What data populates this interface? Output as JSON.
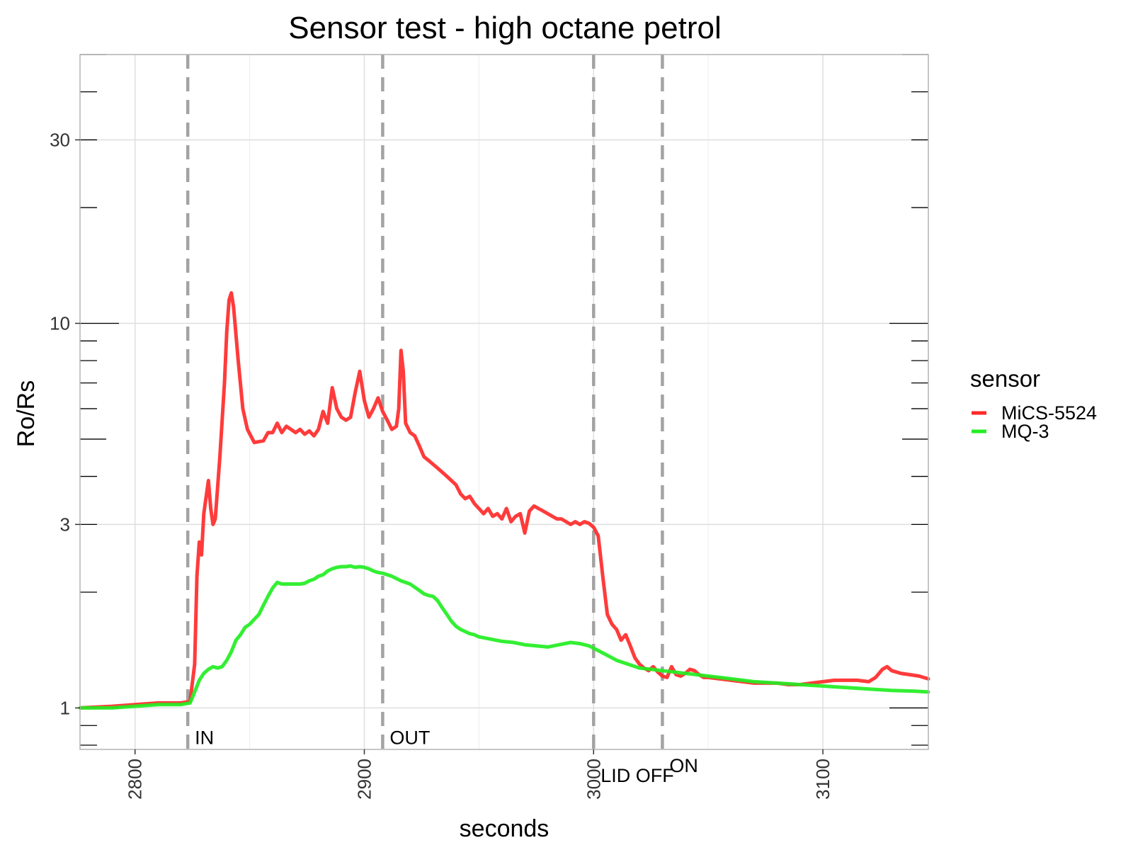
{
  "chart_data": {
    "type": "line",
    "title": "Sensor test - high octane petrol",
    "xlabel": "seconds",
    "ylabel": "Ro/Rs",
    "xlim": [
      2776,
      3146
    ],
    "ylim": [
      0.78,
      50
    ],
    "y_scale": "log",
    "x_ticks": [
      2800,
      2900,
      3000,
      3100
    ],
    "x_tick_labels": [
      "2800",
      "2900",
      "3000",
      "3100"
    ],
    "y_ticks": [
      1,
      3,
      10,
      30
    ],
    "y_tick_labels": [
      "1",
      "3",
      "10",
      "30"
    ],
    "grid": true,
    "legend": {
      "title": "sensor",
      "position": "right"
    },
    "events": [
      {
        "x": 2823,
        "label": "IN",
        "label_y": 0.84
      },
      {
        "x": 2908,
        "label": "OUT",
        "label_y": 0.84
      },
      {
        "x": 3000,
        "label": "LID OFF",
        "label_y": 0.67
      },
      {
        "x": 3030,
        "label": "ON",
        "label_y": 0.71
      }
    ],
    "series": [
      {
        "name": "MiCS-5524",
        "color": "#ff2a2a",
        "points": [
          [
            2776,
            1.0
          ],
          [
            2790,
            1.01
          ],
          [
            2800,
            1.02
          ],
          [
            2810,
            1.03
          ],
          [
            2820,
            1.03
          ],
          [
            2824,
            1.04
          ],
          [
            2826,
            1.3
          ],
          [
            2827,
            2.2
          ],
          [
            2828,
            2.7
          ],
          [
            2829,
            2.5
          ],
          [
            2830,
            3.2
          ],
          [
            2832,
            3.9
          ],
          [
            2833,
            3.3
          ],
          [
            2834,
            3.0
          ],
          [
            2835,
            3.1
          ],
          [
            2837,
            4.5
          ],
          [
            2839,
            7.0
          ],
          [
            2840,
            9.5
          ],
          [
            2841,
            11.5
          ],
          [
            2842,
            12.0
          ],
          [
            2843,
            11.0
          ],
          [
            2845,
            8.0
          ],
          [
            2847,
            6.0
          ],
          [
            2849,
            5.3
          ],
          [
            2852,
            4.9
          ],
          [
            2856,
            4.95
          ],
          [
            2858,
            5.2
          ],
          [
            2860,
            5.2
          ],
          [
            2862,
            5.5
          ],
          [
            2864,
            5.2
          ],
          [
            2866,
            5.4
          ],
          [
            2868,
            5.3
          ],
          [
            2870,
            5.2
          ],
          [
            2872,
            5.3
          ],
          [
            2874,
            5.15
          ],
          [
            2876,
            5.25
          ],
          [
            2878,
            5.1
          ],
          [
            2880,
            5.3
          ],
          [
            2882,
            5.9
          ],
          [
            2884,
            5.5
          ],
          [
            2886,
            6.8
          ],
          [
            2888,
            6.0
          ],
          [
            2890,
            5.7
          ],
          [
            2892,
            5.6
          ],
          [
            2894,
            5.7
          ],
          [
            2896,
            6.6
          ],
          [
            2898,
            7.5
          ],
          [
            2900,
            6.3
          ],
          [
            2902,
            5.7
          ],
          [
            2904,
            6.0
          ],
          [
            2906,
            6.4
          ],
          [
            2908,
            5.9
          ],
          [
            2910,
            5.6
          ],
          [
            2912,
            5.3
          ],
          [
            2914,
            5.4
          ],
          [
            2915,
            6.0
          ],
          [
            2916,
            8.5
          ],
          [
            2917,
            7.5
          ],
          [
            2918,
            5.5
          ],
          [
            2920,
            5.2
          ],
          [
            2922,
            5.1
          ],
          [
            2924,
            4.8
          ],
          [
            2926,
            4.5
          ],
          [
            2928,
            4.4
          ],
          [
            2930,
            4.3
          ],
          [
            2932,
            4.2
          ],
          [
            2934,
            4.1
          ],
          [
            2936,
            4.0
          ],
          [
            2938,
            3.9
          ],
          [
            2940,
            3.8
          ],
          [
            2942,
            3.6
          ],
          [
            2944,
            3.5
          ],
          [
            2946,
            3.55
          ],
          [
            2948,
            3.4
          ],
          [
            2950,
            3.3
          ],
          [
            2952,
            3.2
          ],
          [
            2954,
            3.3
          ],
          [
            2956,
            3.15
          ],
          [
            2958,
            3.2
          ],
          [
            2960,
            3.1
          ],
          [
            2962,
            3.3
          ],
          [
            2964,
            3.05
          ],
          [
            2966,
            3.15
          ],
          [
            2968,
            3.2
          ],
          [
            2970,
            2.85
          ],
          [
            2972,
            3.25
          ],
          [
            2974,
            3.35
          ],
          [
            2976,
            3.3
          ],
          [
            2978,
            3.25
          ],
          [
            2980,
            3.2
          ],
          [
            2982,
            3.15
          ],
          [
            2984,
            3.1
          ],
          [
            2986,
            3.1
          ],
          [
            2988,
            3.05
          ],
          [
            2990,
            3.0
          ],
          [
            2992,
            3.05
          ],
          [
            2994,
            3.0
          ],
          [
            2996,
            3.05
          ],
          [
            2998,
            3.02
          ],
          [
            3000,
            2.95
          ],
          [
            3002,
            2.8
          ],
          [
            3004,
            2.2
          ],
          [
            3006,
            1.75
          ],
          [
            3008,
            1.65
          ],
          [
            3010,
            1.6
          ],
          [
            3012,
            1.5
          ],
          [
            3014,
            1.55
          ],
          [
            3016,
            1.45
          ],
          [
            3018,
            1.35
          ],
          [
            3020,
            1.3
          ],
          [
            3022,
            1.27
          ],
          [
            3024,
            1.25
          ],
          [
            3026,
            1.28
          ],
          [
            3028,
            1.24
          ],
          [
            3030,
            1.21
          ],
          [
            3032,
            1.2
          ],
          [
            3034,
            1.28
          ],
          [
            3036,
            1.22
          ],
          [
            3038,
            1.21
          ],
          [
            3040,
            1.23
          ],
          [
            3042,
            1.26
          ],
          [
            3044,
            1.25
          ],
          [
            3046,
            1.22
          ],
          [
            3048,
            1.2
          ],
          [
            3050,
            1.2
          ],
          [
            3055,
            1.19
          ],
          [
            3060,
            1.18
          ],
          [
            3065,
            1.17
          ],
          [
            3070,
            1.16
          ],
          [
            3075,
            1.16
          ],
          [
            3080,
            1.16
          ],
          [
            3085,
            1.15
          ],
          [
            3090,
            1.15
          ],
          [
            3095,
            1.16
          ],
          [
            3100,
            1.17
          ],
          [
            3105,
            1.18
          ],
          [
            3110,
            1.18
          ],
          [
            3115,
            1.18
          ],
          [
            3120,
            1.17
          ],
          [
            3123,
            1.2
          ],
          [
            3126,
            1.26
          ],
          [
            3128,
            1.28
          ],
          [
            3130,
            1.25
          ],
          [
            3134,
            1.23
          ],
          [
            3138,
            1.22
          ],
          [
            3142,
            1.21
          ],
          [
            3146,
            1.19
          ]
        ]
      },
      {
        "name": "MQ-3",
        "color": "#22ee22",
        "points": [
          [
            2776,
            1.0
          ],
          [
            2790,
            1.0
          ],
          [
            2800,
            1.01
          ],
          [
            2810,
            1.02
          ],
          [
            2820,
            1.02
          ],
          [
            2824,
            1.03
          ],
          [
            2826,
            1.1
          ],
          [
            2828,
            1.18
          ],
          [
            2830,
            1.23
          ],
          [
            2832,
            1.26
          ],
          [
            2834,
            1.28
          ],
          [
            2836,
            1.27
          ],
          [
            2838,
            1.28
          ],
          [
            2840,
            1.33
          ],
          [
            2842,
            1.4
          ],
          [
            2844,
            1.5
          ],
          [
            2846,
            1.55
          ],
          [
            2848,
            1.62
          ],
          [
            2850,
            1.65
          ],
          [
            2852,
            1.7
          ],
          [
            2854,
            1.75
          ],
          [
            2856,
            1.85
          ],
          [
            2858,
            1.95
          ],
          [
            2860,
            2.05
          ],
          [
            2862,
            2.12
          ],
          [
            2864,
            2.1
          ],
          [
            2866,
            2.1
          ],
          [
            2868,
            2.1
          ],
          [
            2870,
            2.1
          ],
          [
            2872,
            2.1
          ],
          [
            2874,
            2.11
          ],
          [
            2876,
            2.14
          ],
          [
            2878,
            2.16
          ],
          [
            2880,
            2.2
          ],
          [
            2882,
            2.22
          ],
          [
            2884,
            2.27
          ],
          [
            2886,
            2.3
          ],
          [
            2888,
            2.32
          ],
          [
            2890,
            2.33
          ],
          [
            2892,
            2.33
          ],
          [
            2894,
            2.34
          ],
          [
            2896,
            2.32
          ],
          [
            2898,
            2.33
          ],
          [
            2900,
            2.32
          ],
          [
            2902,
            2.3
          ],
          [
            2904,
            2.27
          ],
          [
            2906,
            2.25
          ],
          [
            2908,
            2.24
          ],
          [
            2910,
            2.22
          ],
          [
            2912,
            2.2
          ],
          [
            2914,
            2.17
          ],
          [
            2916,
            2.14
          ],
          [
            2918,
            2.12
          ],
          [
            2920,
            2.1
          ],
          [
            2922,
            2.06
          ],
          [
            2924,
            2.02
          ],
          [
            2926,
            1.98
          ],
          [
            2928,
            1.96
          ],
          [
            2930,
            1.95
          ],
          [
            2932,
            1.9
          ],
          [
            2934,
            1.82
          ],
          [
            2936,
            1.75
          ],
          [
            2938,
            1.68
          ],
          [
            2940,
            1.63
          ],
          [
            2942,
            1.6
          ],
          [
            2944,
            1.58
          ],
          [
            2946,
            1.56
          ],
          [
            2948,
            1.55
          ],
          [
            2950,
            1.53
          ],
          [
            2955,
            1.51
          ],
          [
            2960,
            1.49
          ],
          [
            2965,
            1.48
          ],
          [
            2970,
            1.46
          ],
          [
            2975,
            1.45
          ],
          [
            2980,
            1.44
          ],
          [
            2985,
            1.46
          ],
          [
            2990,
            1.48
          ],
          [
            2994,
            1.47
          ],
          [
            2998,
            1.45
          ],
          [
            3000,
            1.43
          ],
          [
            3005,
            1.38
          ],
          [
            3010,
            1.33
          ],
          [
            3015,
            1.3
          ],
          [
            3020,
            1.27
          ],
          [
            3025,
            1.26
          ],
          [
            3030,
            1.25
          ],
          [
            3035,
            1.24
          ],
          [
            3040,
            1.23
          ],
          [
            3045,
            1.22
          ],
          [
            3050,
            1.21
          ],
          [
            3055,
            1.2
          ],
          [
            3060,
            1.19
          ],
          [
            3065,
            1.18
          ],
          [
            3070,
            1.17
          ],
          [
            3075,
            1.165
          ],
          [
            3080,
            1.16
          ],
          [
            3085,
            1.155
          ],
          [
            3090,
            1.15
          ],
          [
            3095,
            1.145
          ],
          [
            3100,
            1.14
          ],
          [
            3105,
            1.135
          ],
          [
            3110,
            1.13
          ],
          [
            3115,
            1.125
          ],
          [
            3120,
            1.12
          ],
          [
            3125,
            1.115
          ],
          [
            3130,
            1.11
          ],
          [
            3135,
            1.108
          ],
          [
            3140,
            1.106
          ],
          [
            3146,
            1.1
          ]
        ]
      }
    ]
  }
}
